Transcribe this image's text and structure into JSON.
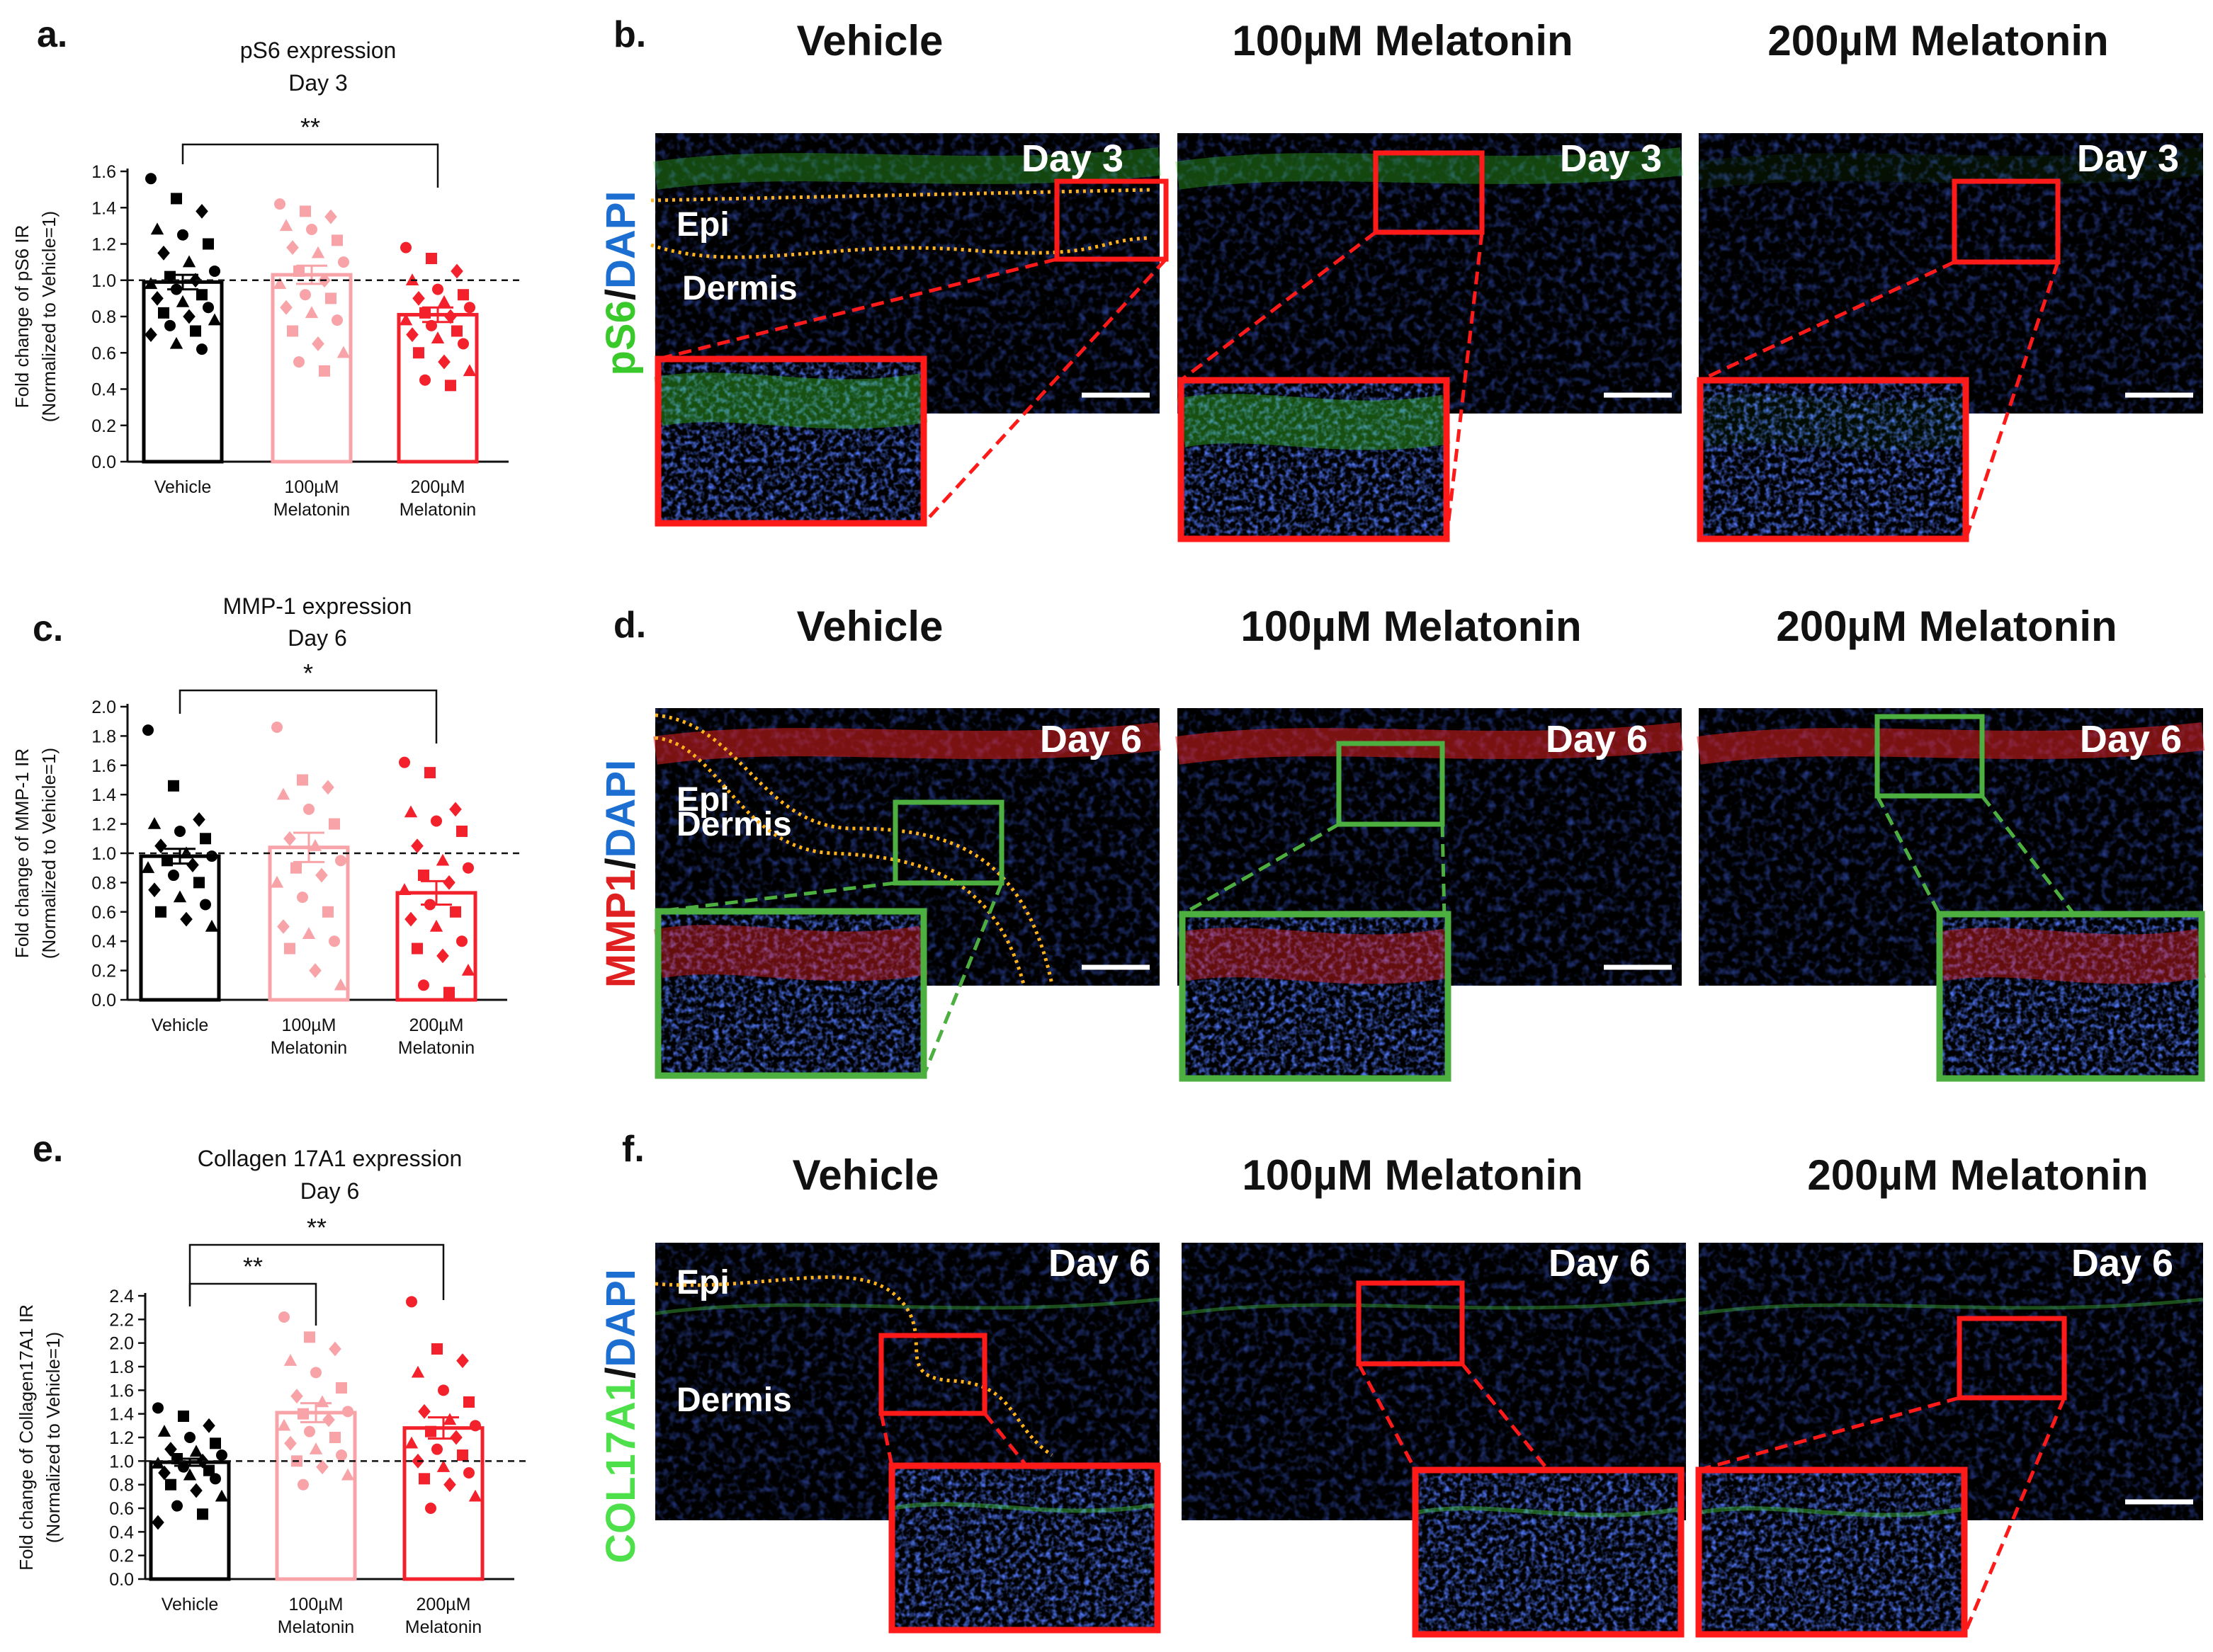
{
  "palette": {
    "vehicle": "#000000",
    "mel100": "#f7a3a8",
    "mel200": "#f2212b",
    "red_box": "#ff1a1a",
    "green_box": "#4caf3f",
    "dapi_blue": "#1c3ccf",
    "ps6_green": "#3ac92a",
    "mmp1_red": "#e02020",
    "col_green": "#4ee04a",
    "orange_dot": "#ffb21a",
    "panel_bg": "#000000"
  },
  "panels": {
    "a": {
      "letter": "a."
    },
    "b": {
      "letter": "b."
    },
    "c": {
      "letter": "c."
    },
    "d": {
      "letter": "d."
    },
    "e": {
      "letter": "e."
    },
    "f": {
      "letter": "f."
    }
  },
  "chart_data": [
    {
      "panel": "a",
      "type": "bar",
      "title": "pS6 expression",
      "subtitle": "Day 3",
      "ylabel": "Fold change of pS6 IR",
      "ylabel2": "(Normalized to Vehicle=1)",
      "ylim": [
        0,
        1.6
      ],
      "yticks": [
        "0.0",
        "0.2",
        "0.4",
        "0.6",
        "0.8",
        "1.0",
        "1.2",
        "1.4",
        "1.6"
      ],
      "categories": [
        [
          "Vehicle"
        ],
        [
          "100µM",
          "Melatonin"
        ],
        [
          "200µM",
          "Melatonin"
        ]
      ],
      "means": [
        0.99,
        1.03,
        0.81
      ],
      "sem": [
        0.04,
        0.05,
        0.04
      ],
      "reference_line": 1.0,
      "points": [
        [
          1.56,
          1.45,
          1.38,
          1.28,
          1.25,
          1.2,
          1.15,
          1.1,
          1.05,
          1.02,
          1.0,
          0.98,
          0.95,
          0.92,
          0.9,
          0.88,
          0.85,
          0.82,
          0.8,
          0.78,
          0.75,
          0.72,
          0.7,
          0.65,
          0.62
        ],
        [
          1.42,
          1.38,
          1.35,
          1.3,
          1.28,
          1.22,
          1.18,
          1.15,
          1.1,
          1.05,
          1.0,
          0.98,
          0.92,
          0.9,
          0.85,
          0.82,
          0.78,
          0.72,
          0.65,
          0.6,
          0.55,
          0.5
        ],
        [
          1.18,
          1.12,
          1.05,
          1.0,
          0.95,
          0.92,
          0.9,
          0.88,
          0.85,
          0.82,
          0.8,
          0.78,
          0.75,
          0.72,
          0.7,
          0.68,
          0.65,
          0.6,
          0.55,
          0.5,
          0.45,
          0.42
        ]
      ],
      "significance": [
        {
          "from": 0,
          "to": 2,
          "label": "**"
        }
      ]
    },
    {
      "panel": "c",
      "type": "bar",
      "title": "MMP-1 expression",
      "subtitle": "Day 6",
      "ylabel": "Fold change of MMP-1 IR",
      "ylabel2": "(Normalized to Vehicle=1)",
      "ylim": [
        0,
        2.0
      ],
      "yticks": [
        "0.0",
        "0.2",
        "0.4",
        "0.6",
        "0.8",
        "1.0",
        "1.2",
        "1.4",
        "1.6",
        "1.8",
        "2.0"
      ],
      "categories": [
        [
          "Vehicle"
        ],
        [
          "100µM",
          "Melatonin"
        ],
        [
          "200µM",
          "Melatonin"
        ]
      ],
      "means": [
        0.98,
        1.04,
        0.73
      ],
      "sem": [
        0.05,
        0.1,
        0.08
      ],
      "reference_line": 1.0,
      "points": [
        [
          1.84,
          1.46,
          1.23,
          1.2,
          1.15,
          1.1,
          1.05,
          1.0,
          0.98,
          0.95,
          0.92,
          0.9,
          0.85,
          0.8,
          0.75,
          0.7,
          0.65,
          0.6,
          0.55,
          0.5
        ],
        [
          1.86,
          1.5,
          1.45,
          1.4,
          1.3,
          1.2,
          1.1,
          1.05,
          0.95,
          0.9,
          0.85,
          0.8,
          0.7,
          0.6,
          0.5,
          0.45,
          0.4,
          0.35,
          0.2,
          0.1
        ],
        [
          1.62,
          1.55,
          1.3,
          1.28,
          1.22,
          1.15,
          1.05,
          0.95,
          0.9,
          0.85,
          0.8,
          0.75,
          0.65,
          0.6,
          0.55,
          0.5,
          0.4,
          0.35,
          0.3,
          0.2,
          0.1,
          0.05
        ]
      ],
      "significance": [
        {
          "from": 0,
          "to": 2,
          "label": "*"
        }
      ]
    },
    {
      "panel": "e",
      "type": "bar",
      "title": "Collagen 17A1 expression",
      "subtitle": "Day 6",
      "ylabel": "Fold change of Collagen17A1 IR",
      "ylabel2": "(Normalized to Vehicle=1)",
      "ylim": [
        0,
        2.4
      ],
      "yticks": [
        "0.0",
        "0.2",
        "0.4",
        "0.6",
        "0.8",
        "1.0",
        "1.2",
        "1.4",
        "1.6",
        "1.8",
        "2.0",
        "2.2",
        "2.4"
      ],
      "categories": [
        [
          "Vehicle"
        ],
        [
          "100µM",
          "Melatonin"
        ],
        [
          "200µM",
          "Melatonin"
        ]
      ],
      "means": [
        0.99,
        1.41,
        1.28
      ],
      "sem": [
        0.03,
        0.08,
        0.09
      ],
      "reference_line": 1.0,
      "points": [
        [
          1.45,
          1.38,
          1.3,
          1.25,
          1.2,
          1.15,
          1.1,
          1.08,
          1.05,
          1.02,
          1.0,
          0.98,
          0.95,
          0.92,
          0.9,
          0.88,
          0.85,
          0.8,
          0.75,
          0.7,
          0.62,
          0.55,
          0.48
        ],
        [
          2.22,
          2.05,
          1.95,
          1.85,
          1.75,
          1.62,
          1.55,
          1.5,
          1.42,
          1.4,
          1.35,
          1.3,
          1.25,
          1.2,
          1.15,
          1.1,
          1.05,
          1.0,
          0.95,
          0.88,
          0.8
        ],
        [
          2.35,
          1.95,
          1.85,
          1.75,
          1.6,
          1.5,
          1.42,
          1.35,
          1.3,
          1.25,
          1.2,
          1.15,
          1.1,
          1.05,
          1.0,
          0.95,
          0.9,
          0.85,
          0.8,
          0.7,
          0.6
        ]
      ],
      "significance": [
        {
          "from": 0,
          "to": 1,
          "label": "**"
        },
        {
          "from": 0,
          "to": 2,
          "label": "**"
        }
      ]
    }
  ],
  "micrographs": [
    {
      "panel": "b",
      "stain_primary": "pS6",
      "stain_sep": "/",
      "stain_dapi": "DAPI",
      "stain_color": "#3ac92a",
      "box_color": "#ff1a1a",
      "columns": [
        "Vehicle",
        "100µM Melatonin",
        "200µM Melatonin"
      ],
      "day_labels": [
        "Day 3",
        "Day 3",
        "Day 3"
      ],
      "region_labels": [
        "Epi",
        "Dermis"
      ]
    },
    {
      "panel": "d",
      "stain_primary": "MMP1",
      "stain_sep": "/",
      "stain_dapi": "DAPI",
      "stain_color": "#e02020",
      "box_color": "#4caf3f",
      "columns": [
        "Vehicle",
        "100µM Melatonin",
        "200µM Melatonin"
      ],
      "day_labels": [
        "Day 6",
        "Day 6",
        "Day 6"
      ],
      "region_labels": [
        "Epi",
        "Dermis"
      ]
    },
    {
      "panel": "f",
      "stain_primary": "COL17A1",
      "stain_sep": "/",
      "stain_dapi": "DAPI",
      "stain_color": "#4ee04a",
      "box_color": "#ff1a1a",
      "columns": [
        "Vehicle",
        "100µM Melatonin",
        "200µM Melatonin"
      ],
      "day_labels": [
        "Day 6",
        "Day 6",
        "Day 6"
      ],
      "region_labels": [
        "Epi",
        "Dermis"
      ]
    }
  ]
}
